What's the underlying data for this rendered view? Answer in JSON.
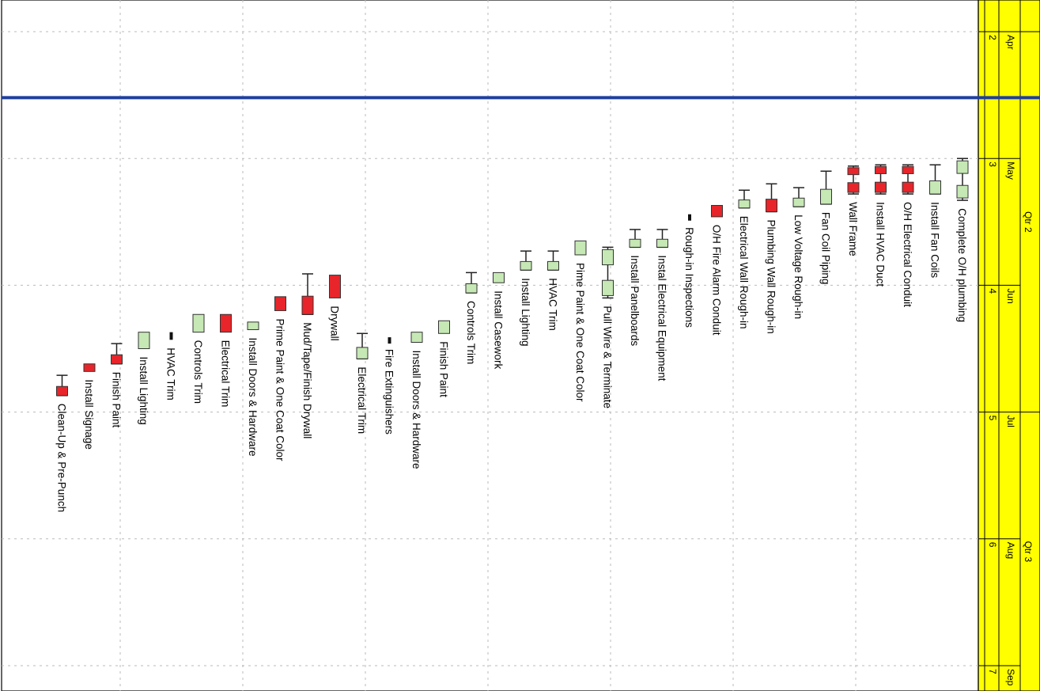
{
  "chart_data": {
    "type": "gantt",
    "orientation": "rotated-90-clockwise",
    "timescale": {
      "quarters": [
        {
          "label": "Qtr 2",
          "start": 2.0,
          "end": 5.0
        },
        {
          "label": "Qtr 3",
          "start": 5.0,
          "end": 8.0
        }
      ],
      "months": [
        {
          "label": "Apr",
          "number": "2",
          "start": 2.0,
          "end": 3.0
        },
        {
          "label": "May",
          "number": "3",
          "start": 3.0,
          "end": 4.0
        },
        {
          "label": "Jun",
          "number": "4",
          "start": 4.0,
          "end": 5.0
        },
        {
          "label": "Jul",
          "number": "5",
          "start": 5.0,
          "end": 6.0
        },
        {
          "label": "Aug",
          "number": "6",
          "start": 6.0,
          "end": 7.0
        },
        {
          "label": "Sep",
          "number": "7",
          "start": 7.0,
          "end": 8.0
        }
      ],
      "visible_range": [
        1.75,
        7.2
      ],
      "status_line": 2.52
    },
    "tasks": [
      {
        "name": "Complete O/H plumbing",
        "start": 3.0,
        "end": 3.33,
        "status": "planned",
        "style": "double"
      },
      {
        "name": "Install Fan Coils",
        "start": 3.05,
        "end": 3.28,
        "status": "planned",
        "style": "single"
      },
      {
        "name": "O/H Electrical Conduit",
        "start": 3.05,
        "end": 3.28,
        "status": "critical",
        "style": "split"
      },
      {
        "name": "Install HVAC Duct",
        "start": 3.05,
        "end": 3.28,
        "status": "critical",
        "style": "split"
      },
      {
        "name": "Wall Frame",
        "start": 3.06,
        "end": 3.28,
        "status": "critical",
        "style": "split"
      },
      {
        "name": "Fan Coil Piping",
        "start": 3.1,
        "end": 3.36,
        "status": "planned",
        "style": "single"
      },
      {
        "name": "Low Voltage Rough-in",
        "start": 3.23,
        "end": 3.38,
        "status": "planned",
        "style": "single"
      },
      {
        "name": "Plumbing Wall Rough-in",
        "start": 3.2,
        "end": 3.42,
        "status": "critical",
        "style": "single"
      },
      {
        "name": "Electrical Wall Rough-in",
        "start": 3.25,
        "end": 3.39,
        "status": "planned",
        "style": "single"
      },
      {
        "name": "O/H Fire Alarm Conduit",
        "start": 3.37,
        "end": 3.46,
        "status": "critical",
        "style": "plain"
      },
      {
        "name": "Rough-in Inspections",
        "start": 3.44,
        "end": 3.48,
        "status": "milestone",
        "style": "plain"
      },
      {
        "name": "Instal Electrical Equipment",
        "start": 3.56,
        "end": 3.7,
        "status": "planned",
        "style": "single"
      },
      {
        "name": "Install Panelboards",
        "start": 3.56,
        "end": 3.7,
        "status": "planned",
        "style": "single"
      },
      {
        "name": "Pull Wire & Terminate",
        "start": 3.7,
        "end": 4.1,
        "status": "planned",
        "style": "double"
      },
      {
        "name": "Pime Paint & One Coat Color",
        "start": 3.65,
        "end": 3.76,
        "status": "planned",
        "style": "plain"
      },
      {
        "name": "HVAC Trim",
        "start": 3.73,
        "end": 3.88,
        "status": "planned",
        "style": "single"
      },
      {
        "name": "Install Lighting",
        "start": 3.73,
        "end": 3.88,
        "status": "planned",
        "style": "single"
      },
      {
        "name": "Install Casework",
        "start": 3.9,
        "end": 3.98,
        "status": "planned",
        "style": "plain"
      },
      {
        "name": "Controls Trim",
        "start": 3.9,
        "end": 4.06,
        "status": "planned",
        "style": "single"
      },
      {
        "name": "Finish Paint",
        "start": 4.28,
        "end": 4.38,
        "status": "planned",
        "style": "plain"
      },
      {
        "name": "Install Doors & Hardware",
        "start": 4.37,
        "end": 4.45,
        "status": "planned",
        "style": "plain"
      },
      {
        "name": "Fire Extinguishers",
        "start": 4.41,
        "end": 4.44,
        "status": "milestone",
        "style": "plain"
      },
      {
        "name": "Electrical Trim",
        "start": 4.38,
        "end": 4.58,
        "status": "planned",
        "style": "single"
      },
      {
        "name": "Drywall",
        "start": 3.92,
        "end": 4.1,
        "status": "critical",
        "style": "plain"
      },
      {
        "name": "Mud/Tape/Finish Drywall",
        "start": 3.91,
        "end": 4.23,
        "status": "critical",
        "style": "single"
      },
      {
        "name": "Prime Paint & One Coat Color",
        "start": 4.09,
        "end": 4.2,
        "status": "critical",
        "style": "plain"
      },
      {
        "name": "Install Doors & Hardware",
        "start": 4.29,
        "end": 4.35,
        "status": "planned",
        "style": "plain"
      },
      {
        "name": "Electrical Trim",
        "start": 4.23,
        "end": 4.37,
        "status": "critical",
        "style": "plain"
      },
      {
        "name": "Controls Trim",
        "start": 4.23,
        "end": 4.37,
        "status": "planned",
        "style": "plain"
      },
      {
        "name": "HVAC Trim",
        "start": 4.37,
        "end": 4.43,
        "status": "milestone",
        "style": "plain"
      },
      {
        "name": "Install Lighting",
        "start": 4.37,
        "end": 4.5,
        "status": "planned",
        "style": "plain"
      },
      {
        "name": "Finish Paint",
        "start": 4.46,
        "end": 4.62,
        "status": "critical",
        "style": "single"
      },
      {
        "name": "Install Signage",
        "start": 4.62,
        "end": 4.68,
        "status": "critical",
        "style": "plain"
      },
      {
        "name": "Clean-Up & Pre-Punch",
        "start": 4.71,
        "end": 4.87,
        "status": "critical",
        "style": "single"
      }
    ],
    "colors": {
      "planned": "#c6e8b4",
      "critical": "#e8252a",
      "milestone": "#111111",
      "header_bg": "#ffff00",
      "status_line": "#1f3f9f",
      "grid": "#bbbbbb"
    },
    "grid": true
  }
}
